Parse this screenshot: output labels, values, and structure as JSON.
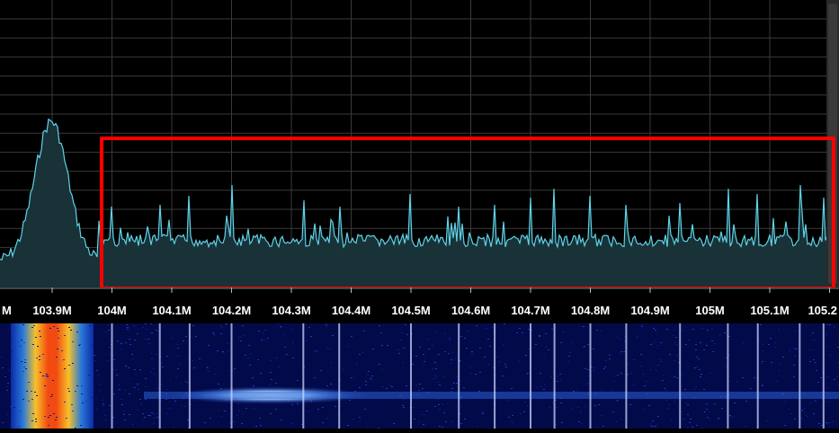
{
  "spectrum": {
    "trace_color": "#5fd3e8",
    "fill_color": "#183238",
    "grid_color": "#3a3a3a",
    "center_station_mhz": 103.9,
    "highlight_color": "#ff0000"
  },
  "frequency_axis": {
    "labels": [
      {
        "text": "M",
        "mhz": 103.8
      },
      {
        "text": "103.9M",
        "mhz": 103.9
      },
      {
        "text": "104M",
        "mhz": 104.0
      },
      {
        "text": "104.1M",
        "mhz": 104.1
      },
      {
        "text": "104.2M",
        "mhz": 104.2
      },
      {
        "text": "104.3M",
        "mhz": 104.3
      },
      {
        "text": "104.4M",
        "mhz": 104.4
      },
      {
        "text": "104.5M",
        "mhz": 104.5
      },
      {
        "text": "104.6M",
        "mhz": 104.6
      },
      {
        "text": "104.7M",
        "mhz": 104.7
      },
      {
        "text": "104.8M",
        "mhz": 104.8
      },
      {
        "text": "104.9M",
        "mhz": 104.9
      },
      {
        "text": "105M",
        "mhz": 105.0
      },
      {
        "text": "105.1M",
        "mhz": 105.1
      },
      {
        "text": "105.2",
        "mhz": 105.2
      }
    ]
  },
  "waterfall": {
    "background_color": "#020a4a",
    "signal_lines_mhz": [
      104.0,
      104.08,
      104.13,
      104.2,
      104.32,
      104.38,
      104.5,
      104.58,
      104.64,
      104.7,
      104.74,
      104.8,
      104.86,
      104.95,
      105.03,
      105.08,
      105.15,
      105.19
    ]
  }
}
